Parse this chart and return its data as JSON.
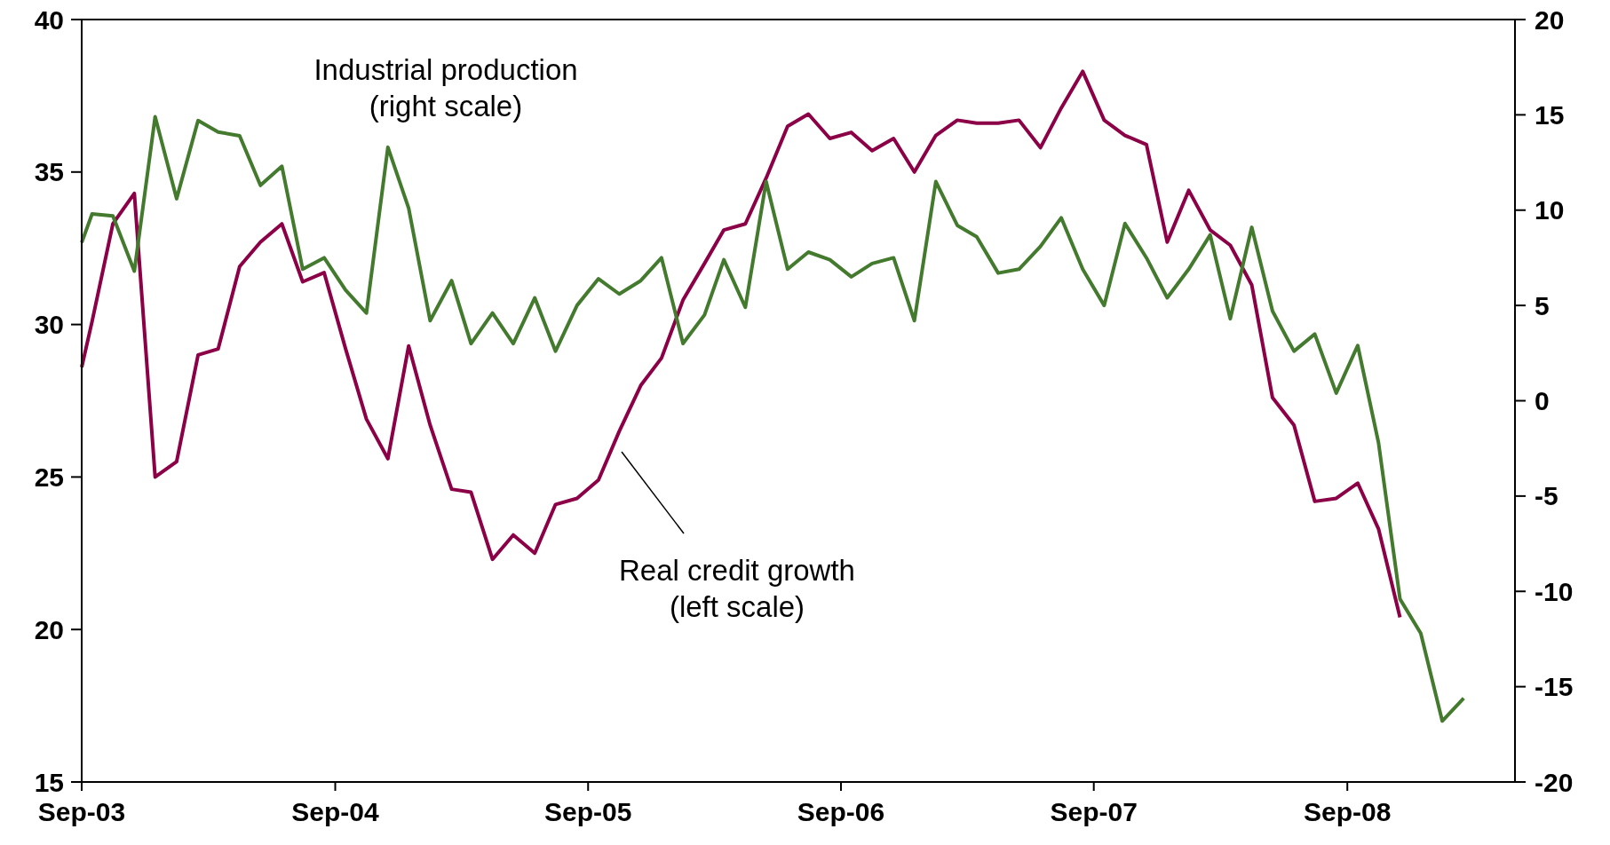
{
  "chart_data": {
    "type": "line",
    "x": [
      "2003-09-01",
      "2003-09-16",
      "2003-10-16",
      "2003-11-16",
      "2003-12-16",
      "2004-01-16",
      "2004-02-16",
      "2004-03-16",
      "2004-04-16",
      "2004-05-16",
      "2004-06-16",
      "2004-07-16",
      "2004-08-16",
      "2004-09-16",
      "2004-10-16",
      "2004-11-16",
      "2004-12-16",
      "2005-01-16",
      "2005-02-16",
      "2005-03-16",
      "2005-04-16",
      "2005-05-16",
      "2005-06-16",
      "2005-07-16",
      "2005-08-16",
      "2005-09-16",
      "2005-10-16",
      "2005-11-16",
      "2005-12-16",
      "2006-01-16",
      "2006-02-16",
      "2006-03-16",
      "2006-04-16",
      "2006-05-16",
      "2006-06-16",
      "2006-07-16",
      "2006-08-16",
      "2006-09-16",
      "2006-10-16",
      "2006-11-16",
      "2006-12-16",
      "2007-01-16",
      "2007-02-16",
      "2007-03-16",
      "2007-04-16",
      "2007-05-16",
      "2007-06-16",
      "2007-07-16",
      "2007-08-16",
      "2007-09-16",
      "2007-10-16",
      "2007-11-16",
      "2007-12-16",
      "2008-01-16",
      "2008-02-16",
      "2008-03-16",
      "2008-04-16",
      "2008-05-16",
      "2008-06-16",
      "2008-07-16",
      "2008-08-16",
      "2008-09-16",
      "2008-10-16",
      "2008-11-16",
      "2008-12-16",
      "2009-01-16",
      "2009-02-16"
    ],
    "series": [
      {
        "color": "#8b0046",
        "values": [
          28.6,
          30.1,
          33.3,
          34.3,
          25.0,
          25.5,
          29.0,
          29.2,
          31.9,
          32.7,
          33.3,
          31.4,
          31.7,
          29.2,
          26.9,
          25.6,
          29.3,
          26.7,
          24.6,
          24.5,
          22.3,
          23.1,
          22.5,
          24.1,
          24.3,
          24.9,
          26.5,
          28.0,
          28.9,
          30.8,
          32.0,
          33.1,
          33.3,
          34.8,
          36.5,
          36.9,
          36.1,
          36.3,
          35.7,
          36.1,
          35.0,
          36.2,
          36.7,
          36.6,
          36.6,
          36.7,
          35.8,
          37.1,
          38.3,
          36.7,
          36.2,
          35.9,
          32.7,
          34.4,
          33.1,
          32.6,
          31.3,
          27.6,
          26.7,
          24.2,
          24.3,
          24.8,
          23.3,
          20.4,
          null,
          null,
          null
        ]
      },
      {
        "color": "#437a2e",
        "axis": "y2",
        "values": [
          8.3,
          9.8,
          9.7,
          6.8,
          14.9,
          10.6,
          14.7,
          14.1,
          13.9,
          11.3,
          12.3,
          6.9,
          7.5,
          5.8,
          4.6,
          13.3,
          10.1,
          4.2,
          6.3,
          3.0,
          4.6,
          3.0,
          5.4,
          2.6,
          5.0,
          6.4,
          5.6,
          6.3,
          7.5,
          3.0,
          4.5,
          7.4,
          4.9,
          11.5,
          6.9,
          7.8,
          7.4,
          6.5,
          7.2,
          7.5,
          4.2,
          11.5,
          9.2,
          8.6,
          6.7,
          6.9,
          8.1,
          9.6,
          6.9,
          5.0,
          9.3,
          7.5,
          5.4,
          6.9,
          8.7,
          4.3,
          9.1,
          4.7,
          2.6,
          3.5,
          0.4,
          2.9,
          -2.2,
          -10.4,
          -12.2,
          -16.8,
          -15.6
        ]
      }
    ],
    "xlim": [
      "2003-09",
      "2009-05"
    ],
    "xticks": [
      {
        "value": "2003-09",
        "label": "Sep-03"
      },
      {
        "value": "2004-09",
        "label": "Sep-04"
      },
      {
        "value": "2005-09",
        "label": "Sep-05"
      },
      {
        "value": "2006-09",
        "label": "Sep-06"
      },
      {
        "value": "2007-09",
        "label": "Sep-07"
      },
      {
        "value": "2008-09",
        "label": "Sep-08"
      }
    ],
    "ylim": [
      15,
      40
    ],
    "yticks": [
      15,
      20,
      25,
      30,
      35,
      40
    ],
    "y2lim": [
      -20,
      20
    ],
    "y2ticks": [
      -20,
      -15,
      -10,
      -5,
      0,
      5,
      10,
      15,
      20
    ],
    "annotations": [
      "Industrial production\n(right scale)",
      "Real credit growth\n(left scale)"
    ]
  }
}
